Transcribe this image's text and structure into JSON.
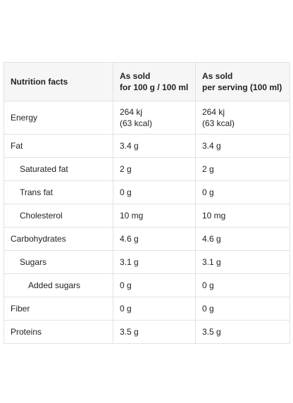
{
  "table": {
    "header": [
      [
        "Nutrition facts"
      ],
      [
        "As sold",
        "for 100 g / 100 ml"
      ],
      [
        "As sold",
        "per serving (100 ml)"
      ]
    ],
    "rows": [
      [
        "Energy",
        [
          "264 kj",
          "(63 kcal)"
        ],
        [
          "264 kj",
          "(63 kcal)"
        ]
      ],
      [
        "Fat",
        "3.4 g",
        "3.4 g"
      ],
      [
        "Saturated fat",
        "2 g",
        "2 g"
      ],
      [
        "Trans fat",
        "0 g",
        "0 g"
      ],
      [
        "Cholesterol",
        "10 mg",
        "10 mg"
      ],
      [
        "Carbohydrates",
        "4.6 g",
        "4.6 g"
      ],
      [
        "Sugars",
        "3.1 g",
        "3.1 g"
      ],
      [
        "Added sugars",
        "0 g",
        "0 g"
      ],
      [
        "Fiber",
        "0 g",
        "0 g"
      ],
      [
        "Proteins",
        "3.5 g",
        "3.5 g"
      ]
    ]
  }
}
